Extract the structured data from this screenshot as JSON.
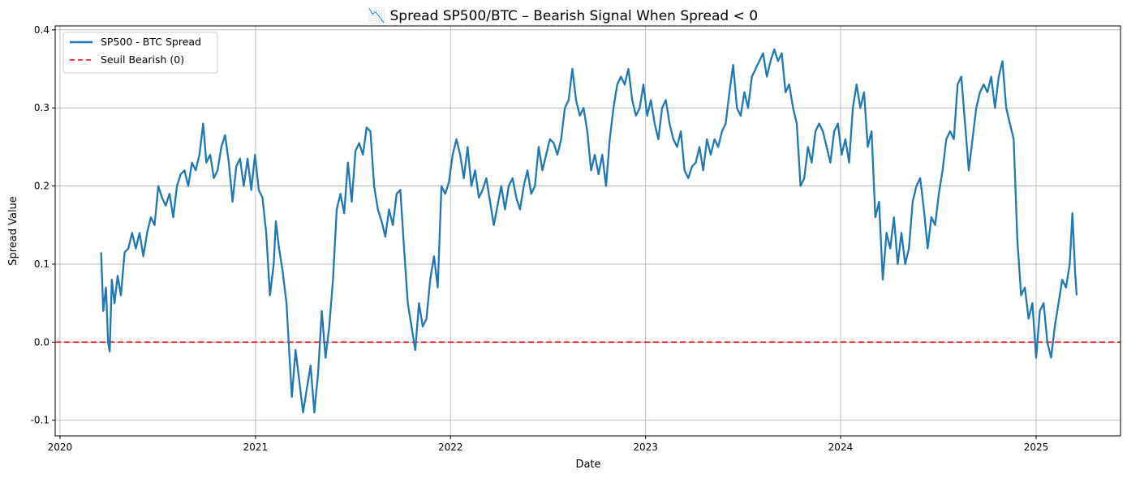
{
  "chart_data": {
    "type": "line",
    "title": "📉 Spread SP500/BTC – Bearish Signal When Spread < 0",
    "xlabel": "Date",
    "ylabel": "Spread Value",
    "xlim": [
      "2019-12-23",
      "2025-06-08"
    ],
    "ylim": [
      -0.12,
      0.405
    ],
    "x_ticks": [
      "2020",
      "2021",
      "2022",
      "2023",
      "2024",
      "2025"
    ],
    "y_ticks": [
      "-0.1",
      "0.0",
      "0.1",
      "0.2",
      "0.3",
      "0.4"
    ],
    "grid": true,
    "legend_position": "top-left",
    "series": [
      {
        "name": "SP500 - BTC Spread",
        "color": "#1f77b4",
        "style": "solid",
        "points": [
          [
            "2020-03-18",
            0.115
          ],
          [
            "2020-03-22",
            0.04
          ],
          [
            "2020-03-27",
            0.07
          ],
          [
            "2020-03-31",
            0.0
          ],
          [
            "2020-04-03",
            -0.012
          ],
          [
            "2020-04-07",
            0.08
          ],
          [
            "2020-04-12",
            0.05
          ],
          [
            "2020-04-18",
            0.085
          ],
          [
            "2020-04-24",
            0.06
          ],
          [
            "2020-05-01",
            0.115
          ],
          [
            "2020-05-08",
            0.12
          ],
          [
            "2020-05-15",
            0.14
          ],
          [
            "2020-05-22",
            0.12
          ],
          [
            "2020-05-29",
            0.14
          ],
          [
            "2020-06-05",
            0.11
          ],
          [
            "2020-06-12",
            0.14
          ],
          [
            "2020-06-19",
            0.16
          ],
          [
            "2020-06-26",
            0.15
          ],
          [
            "2020-07-03",
            0.2
          ],
          [
            "2020-07-10",
            0.185
          ],
          [
            "2020-07-17",
            0.175
          ],
          [
            "2020-07-24",
            0.19
          ],
          [
            "2020-07-31",
            0.16
          ],
          [
            "2020-08-07",
            0.2
          ],
          [
            "2020-08-14",
            0.215
          ],
          [
            "2020-08-21",
            0.22
          ],
          [
            "2020-08-28",
            0.2
          ],
          [
            "2020-09-04",
            0.23
          ],
          [
            "2020-09-11",
            0.22
          ],
          [
            "2020-09-18",
            0.24
          ],
          [
            "2020-09-25",
            0.28
          ],
          [
            "2020-10-01",
            0.23
          ],
          [
            "2020-10-08",
            0.24
          ],
          [
            "2020-10-15",
            0.21
          ],
          [
            "2020-10-22",
            0.22
          ],
          [
            "2020-10-29",
            0.25
          ],
          [
            "2020-11-05",
            0.265
          ],
          [
            "2020-11-12",
            0.23
          ],
          [
            "2020-11-19",
            0.18
          ],
          [
            "2020-11-26",
            0.225
          ],
          [
            "2020-12-03",
            0.235
          ],
          [
            "2020-12-10",
            0.2
          ],
          [
            "2020-12-17",
            0.235
          ],
          [
            "2020-12-24",
            0.195
          ],
          [
            "2020-12-31",
            0.24
          ],
          [
            "2021-01-07",
            0.195
          ],
          [
            "2021-01-14",
            0.185
          ],
          [
            "2021-01-21",
            0.14
          ],
          [
            "2021-01-28",
            0.06
          ],
          [
            "2021-02-04",
            0.1
          ],
          [
            "2021-02-08",
            0.155
          ],
          [
            "2021-02-14",
            0.12
          ],
          [
            "2021-02-21",
            0.09
          ],
          [
            "2021-02-28",
            0.05
          ],
          [
            "2021-03-04",
            0.0
          ],
          [
            "2021-03-10",
            -0.07
          ],
          [
            "2021-03-17",
            -0.01
          ],
          [
            "2021-03-24",
            -0.05
          ],
          [
            "2021-03-31",
            -0.09
          ],
          [
            "2021-04-07",
            -0.06
          ],
          [
            "2021-04-14",
            -0.03
          ],
          [
            "2021-04-21",
            -0.09
          ],
          [
            "2021-04-28",
            -0.04
          ],
          [
            "2021-05-05",
            0.04
          ],
          [
            "2021-05-12",
            -0.02
          ],
          [
            "2021-05-19",
            0.02
          ],
          [
            "2021-05-26",
            0.08
          ],
          [
            "2021-06-02",
            0.17
          ],
          [
            "2021-06-09",
            0.19
          ],
          [
            "2021-06-16",
            0.165
          ],
          [
            "2021-06-23",
            0.23
          ],
          [
            "2021-06-30",
            0.18
          ],
          [
            "2021-07-07",
            0.245
          ],
          [
            "2021-07-14",
            0.255
          ],
          [
            "2021-07-21",
            0.24
          ],
          [
            "2021-07-28",
            0.275
          ],
          [
            "2021-08-04",
            0.27
          ],
          [
            "2021-08-11",
            0.2
          ],
          [
            "2021-08-18",
            0.17
          ],
          [
            "2021-08-25",
            0.155
          ],
          [
            "2021-09-01",
            0.135
          ],
          [
            "2021-09-08",
            0.17
          ],
          [
            "2021-09-15",
            0.15
          ],
          [
            "2021-09-22",
            0.19
          ],
          [
            "2021-09-29",
            0.195
          ],
          [
            "2021-10-06",
            0.12
          ],
          [
            "2021-10-13",
            0.05
          ],
          [
            "2021-10-20",
            0.02
          ],
          [
            "2021-10-27",
            -0.01
          ],
          [
            "2021-11-03",
            0.05
          ],
          [
            "2021-11-10",
            0.02
          ],
          [
            "2021-11-17",
            0.03
          ],
          [
            "2021-11-24",
            0.08
          ],
          [
            "2021-12-01",
            0.11
          ],
          [
            "2021-12-08",
            0.07
          ],
          [
            "2021-12-15",
            0.2
          ],
          [
            "2021-12-22",
            0.19
          ],
          [
            "2021-12-29",
            0.205
          ],
          [
            "2022-01-05",
            0.24
          ],
          [
            "2022-01-12",
            0.26
          ],
          [
            "2022-01-19",
            0.24
          ],
          [
            "2022-01-26",
            0.21
          ],
          [
            "2022-02-02",
            0.25
          ],
          [
            "2022-02-09",
            0.2
          ],
          [
            "2022-02-16",
            0.22
          ],
          [
            "2022-02-23",
            0.185
          ],
          [
            "2022-03-02",
            0.195
          ],
          [
            "2022-03-09",
            0.21
          ],
          [
            "2022-03-16",
            0.18
          ],
          [
            "2022-03-23",
            0.15
          ],
          [
            "2022-03-30",
            0.175
          ],
          [
            "2022-04-06",
            0.2
          ],
          [
            "2022-04-13",
            0.17
          ],
          [
            "2022-04-20",
            0.2
          ],
          [
            "2022-04-27",
            0.21
          ],
          [
            "2022-05-04",
            0.185
          ],
          [
            "2022-05-11",
            0.17
          ],
          [
            "2022-05-18",
            0.2
          ],
          [
            "2022-05-25",
            0.22
          ],
          [
            "2022-06-01",
            0.19
          ],
          [
            "2022-06-08",
            0.2
          ],
          [
            "2022-06-15",
            0.25
          ],
          [
            "2022-06-22",
            0.22
          ],
          [
            "2022-06-29",
            0.24
          ],
          [
            "2022-07-06",
            0.26
          ],
          [
            "2022-07-13",
            0.255
          ],
          [
            "2022-07-20",
            0.24
          ],
          [
            "2022-07-27",
            0.26
          ],
          [
            "2022-08-03",
            0.3
          ],
          [
            "2022-08-10",
            0.31
          ],
          [
            "2022-08-17",
            0.35
          ],
          [
            "2022-08-24",
            0.31
          ],
          [
            "2022-08-31",
            0.29
          ],
          [
            "2022-09-07",
            0.3
          ],
          [
            "2022-09-14",
            0.27
          ],
          [
            "2022-09-21",
            0.22
          ],
          [
            "2022-09-28",
            0.24
          ],
          [
            "2022-10-05",
            0.215
          ],
          [
            "2022-10-12",
            0.24
          ],
          [
            "2022-10-19",
            0.2
          ],
          [
            "2022-10-26",
            0.26
          ],
          [
            "2022-11-02",
            0.3
          ],
          [
            "2022-11-09",
            0.33
          ],
          [
            "2022-11-16",
            0.34
          ],
          [
            "2022-11-23",
            0.33
          ],
          [
            "2022-11-30",
            0.35
          ],
          [
            "2022-12-07",
            0.31
          ],
          [
            "2022-12-14",
            0.29
          ],
          [
            "2022-12-21",
            0.3
          ],
          [
            "2022-12-28",
            0.33
          ],
          [
            "2023-01-04",
            0.29
          ],
          [
            "2023-01-11",
            0.31
          ],
          [
            "2023-01-18",
            0.28
          ],
          [
            "2023-01-25",
            0.26
          ],
          [
            "2023-02-01",
            0.3
          ],
          [
            "2023-02-08",
            0.31
          ],
          [
            "2023-02-15",
            0.28
          ],
          [
            "2023-02-22",
            0.26
          ],
          [
            "2023-03-01",
            0.25
          ],
          [
            "2023-03-08",
            0.27
          ],
          [
            "2023-03-15",
            0.22
          ],
          [
            "2023-03-22",
            0.21
          ],
          [
            "2023-03-29",
            0.225
          ],
          [
            "2023-04-05",
            0.23
          ],
          [
            "2023-04-12",
            0.25
          ],
          [
            "2023-04-19",
            0.22
          ],
          [
            "2023-04-26",
            0.26
          ],
          [
            "2023-05-03",
            0.24
          ],
          [
            "2023-05-10",
            0.26
          ],
          [
            "2023-05-17",
            0.25
          ],
          [
            "2023-05-24",
            0.27
          ],
          [
            "2023-05-31",
            0.28
          ],
          [
            "2023-06-07",
            0.32
          ],
          [
            "2023-06-14",
            0.355
          ],
          [
            "2023-06-21",
            0.3
          ],
          [
            "2023-06-28",
            0.29
          ],
          [
            "2023-07-05",
            0.32
          ],
          [
            "2023-07-12",
            0.3
          ],
          [
            "2023-07-19",
            0.34
          ],
          [
            "2023-07-26",
            0.35
          ],
          [
            "2023-08-02",
            0.36
          ],
          [
            "2023-08-09",
            0.37
          ],
          [
            "2023-08-16",
            0.34
          ],
          [
            "2023-08-23",
            0.36
          ],
          [
            "2023-08-30",
            0.375
          ],
          [
            "2023-09-06",
            0.36
          ],
          [
            "2023-09-13",
            0.37
          ],
          [
            "2023-09-20",
            0.32
          ],
          [
            "2023-09-27",
            0.33
          ],
          [
            "2023-10-04",
            0.3
          ],
          [
            "2023-10-11",
            0.28
          ],
          [
            "2023-10-18",
            0.2
          ],
          [
            "2023-10-25",
            0.21
          ],
          [
            "2023-11-01",
            0.25
          ],
          [
            "2023-11-08",
            0.23
          ],
          [
            "2023-11-15",
            0.27
          ],
          [
            "2023-11-22",
            0.28
          ],
          [
            "2023-11-29",
            0.27
          ],
          [
            "2023-12-06",
            0.25
          ],
          [
            "2023-12-13",
            0.23
          ],
          [
            "2023-12-20",
            0.27
          ],
          [
            "2023-12-27",
            0.28
          ],
          [
            "2024-01-03",
            0.24
          ],
          [
            "2024-01-10",
            0.26
          ],
          [
            "2024-01-17",
            0.23
          ],
          [
            "2024-01-24",
            0.3
          ],
          [
            "2024-01-31",
            0.33
          ],
          [
            "2024-02-07",
            0.3
          ],
          [
            "2024-02-14",
            0.32
          ],
          [
            "2024-02-21",
            0.25
          ],
          [
            "2024-02-28",
            0.27
          ],
          [
            "2024-03-06",
            0.16
          ],
          [
            "2024-03-13",
            0.18
          ],
          [
            "2024-03-20",
            0.08
          ],
          [
            "2024-03-27",
            0.14
          ],
          [
            "2024-04-03",
            0.12
          ],
          [
            "2024-04-10",
            0.16
          ],
          [
            "2024-04-17",
            0.1
          ],
          [
            "2024-04-24",
            0.14
          ],
          [
            "2024-05-01",
            0.1
          ],
          [
            "2024-05-08",
            0.12
          ],
          [
            "2024-05-15",
            0.18
          ],
          [
            "2024-05-22",
            0.2
          ],
          [
            "2024-05-29",
            0.21
          ],
          [
            "2024-06-05",
            0.17
          ],
          [
            "2024-06-12",
            0.12
          ],
          [
            "2024-06-19",
            0.16
          ],
          [
            "2024-06-26",
            0.15
          ],
          [
            "2024-07-03",
            0.19
          ],
          [
            "2024-07-10",
            0.22
          ],
          [
            "2024-07-17",
            0.26
          ],
          [
            "2024-07-24",
            0.27
          ],
          [
            "2024-07-31",
            0.26
          ],
          [
            "2024-08-07",
            0.33
          ],
          [
            "2024-08-14",
            0.34
          ],
          [
            "2024-08-21",
            0.28
          ],
          [
            "2024-08-28",
            0.22
          ],
          [
            "2024-09-04",
            0.26
          ],
          [
            "2024-09-11",
            0.3
          ],
          [
            "2024-09-18",
            0.32
          ],
          [
            "2024-09-25",
            0.33
          ],
          [
            "2024-10-02",
            0.32
          ],
          [
            "2024-10-09",
            0.34
          ],
          [
            "2024-10-16",
            0.3
          ],
          [
            "2024-10-23",
            0.34
          ],
          [
            "2024-10-30",
            0.36
          ],
          [
            "2024-11-06",
            0.3
          ],
          [
            "2024-11-13",
            0.28
          ],
          [
            "2024-11-20",
            0.26
          ],
          [
            "2024-11-27",
            0.13
          ],
          [
            "2024-12-04",
            0.06
          ],
          [
            "2024-12-11",
            0.07
          ],
          [
            "2024-12-18",
            0.03
          ],
          [
            "2024-12-25",
            0.05
          ],
          [
            "2025-01-01",
            -0.02
          ],
          [
            "2025-01-08",
            0.04
          ],
          [
            "2025-01-15",
            0.05
          ],
          [
            "2025-01-22",
            0.0
          ],
          [
            "2025-01-29",
            -0.02
          ],
          [
            "2025-02-05",
            0.02
          ],
          [
            "2025-02-12",
            0.05
          ],
          [
            "2025-02-19",
            0.08
          ],
          [
            "2025-02-26",
            0.07
          ],
          [
            "2025-03-05",
            0.1
          ],
          [
            "2025-03-10",
            0.165
          ],
          [
            "2025-03-15",
            0.09
          ],
          [
            "2025-03-18",
            0.06
          ]
        ]
      },
      {
        "name": "Seuil Bearish (0)",
        "color": "#ff0000",
        "style": "dashed",
        "value": 0
      }
    ]
  }
}
